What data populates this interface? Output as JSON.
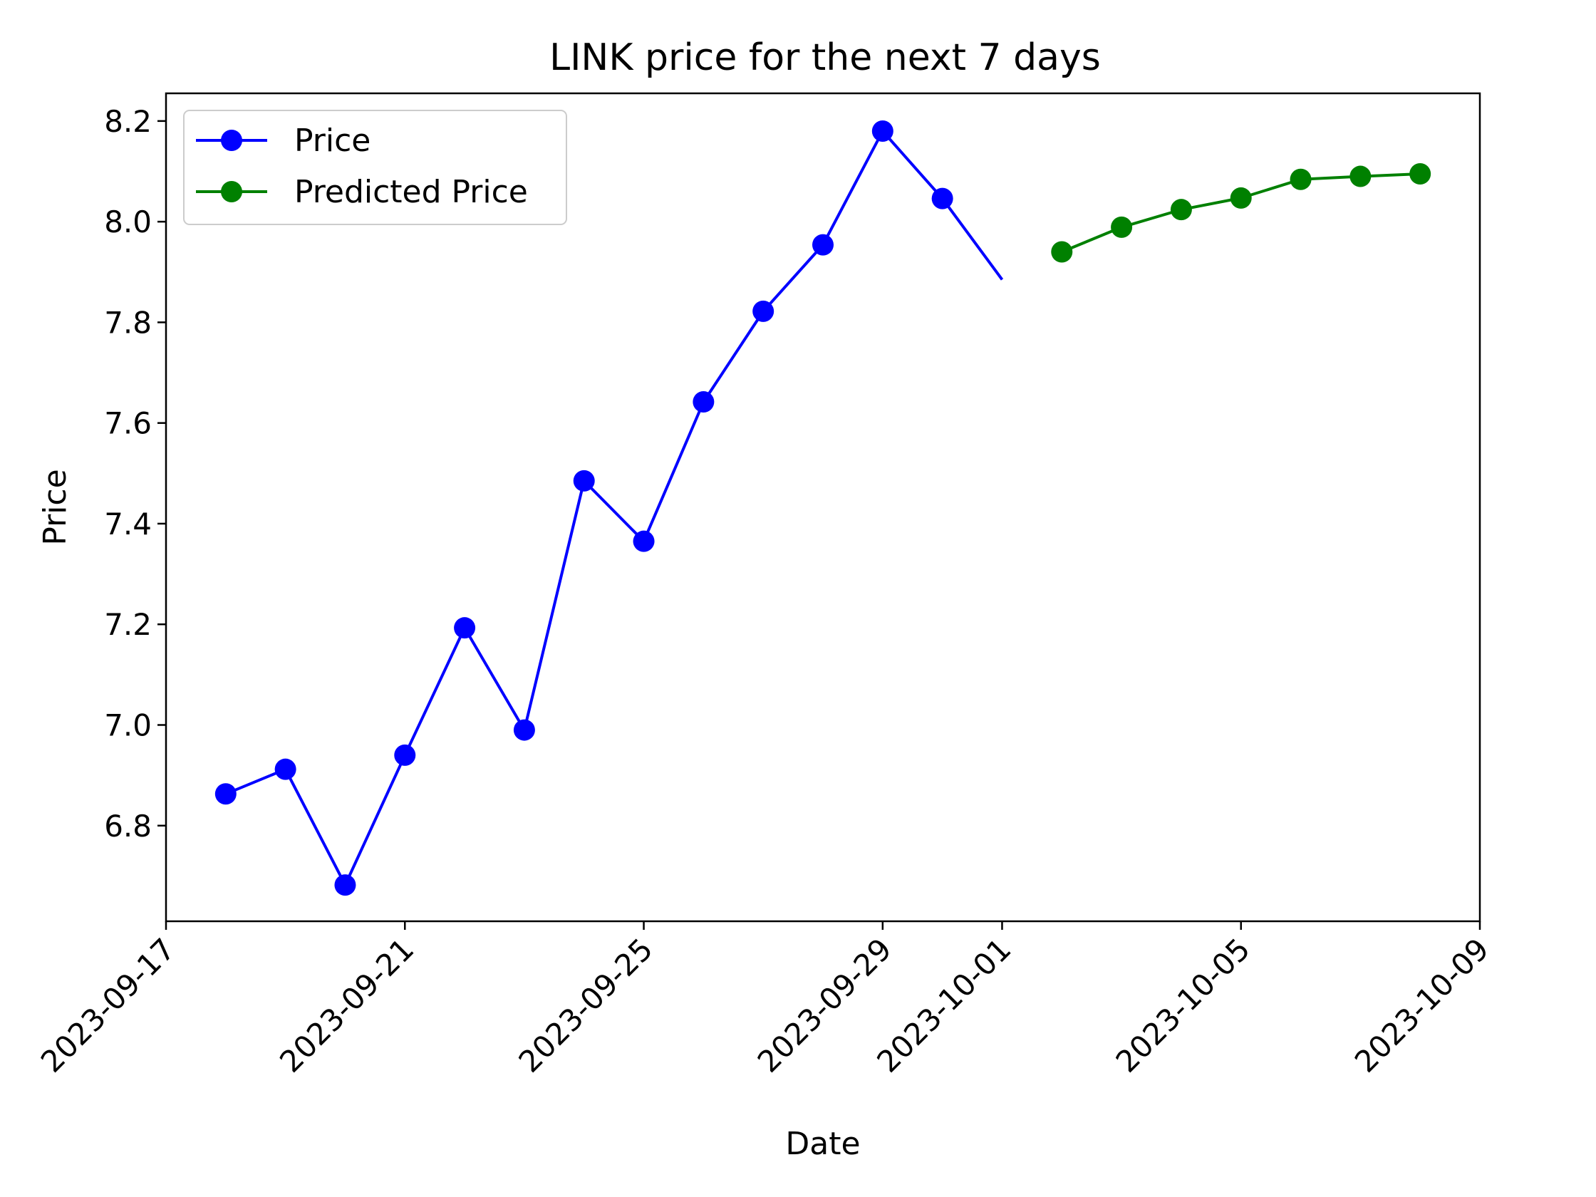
{
  "chart_data": {
    "type": "line",
    "title": "LINK price for the next 7 days",
    "xlabel": "Date",
    "ylabel": "Price",
    "xlim": [
      "2023-09-17",
      "2023-10-09"
    ],
    "ylim": [
      6.61,
      8.255
    ],
    "x_ticks": [
      "2023-09-17",
      "2023-09-21",
      "2023-09-25",
      "2023-09-29",
      "2023-10-01",
      "2023-10-05",
      "2023-10-09"
    ],
    "y_ticks": [
      6.8,
      7.0,
      7.2,
      7.4,
      7.6,
      7.8,
      8.0,
      8.2
    ],
    "legend_position": "top-left",
    "series": [
      {
        "name": "Price",
        "color": "#0000ff",
        "marker": "circle",
        "x": [
          "2023-09-18",
          "2023-09-19",
          "2023-09-20",
          "2023-09-21",
          "2023-09-22",
          "2023-09-23",
          "2023-09-24",
          "2023-09-25",
          "2023-09-26",
          "2023-09-27",
          "2023-09-28",
          "2023-09-29",
          "2023-09-30"
        ],
        "values": [
          6.863,
          6.912,
          6.682,
          6.94,
          7.193,
          6.99,
          7.485,
          7.365,
          7.642,
          7.822,
          7.954,
          8.18,
          8.046
        ],
        "trailing_segment_to": {
          "x": "2023-10-01",
          "value": 7.885
        }
      },
      {
        "name": "Predicted Price",
        "color": "#008000",
        "marker": "circle",
        "x": [
          "2023-10-02",
          "2023-10-03",
          "2023-10-04",
          "2023-10-05",
          "2023-10-06",
          "2023-10-07",
          "2023-10-08"
        ],
        "values": [
          7.94,
          7.989,
          8.024,
          8.047,
          8.084,
          8.09,
          8.095
        ]
      }
    ]
  }
}
